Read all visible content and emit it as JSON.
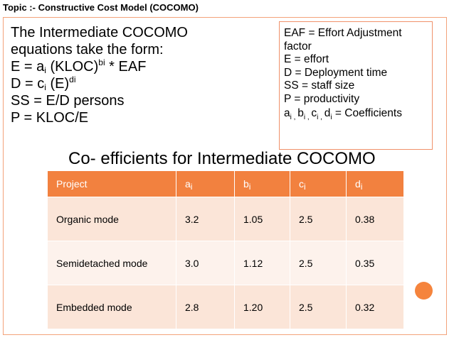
{
  "topic": "Topic :- Constructive Cost Model (COCOMO)",
  "equations": {
    "intro_line1": "The Intermediate COCOMO",
    "intro_line2": "equations take the form:",
    "e_prefix": "E = a",
    "e_sub": "i",
    "e_mid": " (KLOC)",
    "e_sup": "bi",
    "e_suffix": " * EAF",
    "d_prefix": "D = c",
    "d_sub": "i",
    "d_mid": " (E)",
    "d_sup": "di",
    "ss": "SS = E/D persons",
    "p": "P = KLOC/E"
  },
  "legend": {
    "eaf_line1": "EAF = Effort Adjustment",
    "eaf_line2": "factor",
    "e": "E = effort",
    "d": "D = Deployment time",
    "ss": "SS = staff size",
    "p": "P = productivity",
    "coeff_a": "a",
    "coeff_b": "b",
    "coeff_c": "c",
    "coeff_d": "d",
    "coeff_sub_i": "i",
    "coeff_sep": " , ",
    "coeff_suffix": " = Coefficients"
  },
  "subtitle": "Co- efficients for Intermediate COCOMO",
  "table": {
    "headers": [
      {
        "base": "Project",
        "sub": ""
      },
      {
        "base": "a",
        "sub": "i"
      },
      {
        "base": "b",
        "sub": "i"
      },
      {
        "base": "c",
        "sub": "i"
      },
      {
        "base": "d",
        "sub": "i"
      }
    ],
    "rows": [
      [
        "Organic mode",
        "3.2",
        "1.05",
        "2.5",
        "0.38"
      ],
      [
        "Semidetached mode",
        "3.0",
        "1.12",
        "2.5",
        "0.35"
      ],
      [
        "Embedded mode",
        "2.8",
        "1.20",
        "2.5",
        "0.32"
      ]
    ]
  },
  "colors": {
    "accent": "#f2813f",
    "row_light": "#fbe5d8",
    "row_lighter": "#fdf2ec",
    "border": "#f0916a"
  }
}
